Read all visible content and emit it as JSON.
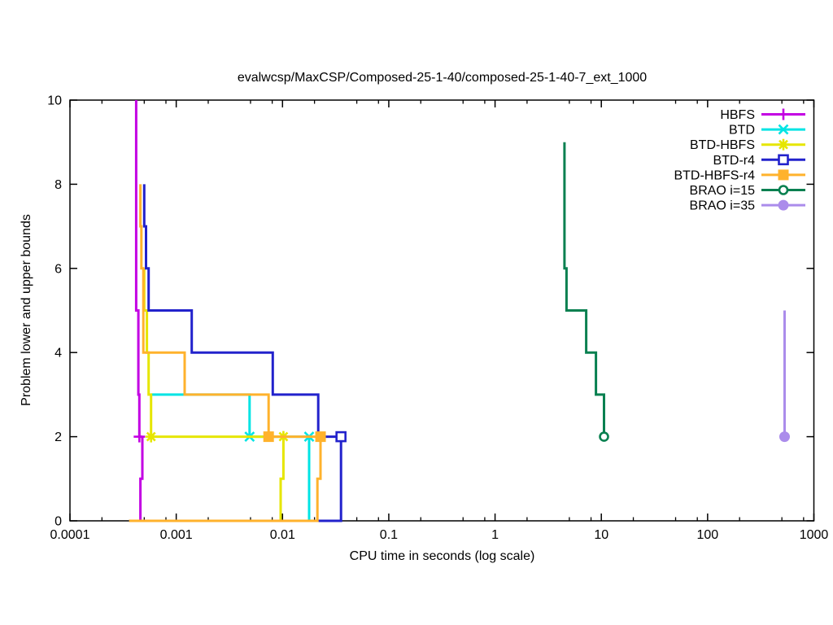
{
  "chart_data": {
    "type": "line",
    "title": "evalwcsp/MaxCSP/Composed-25-1-40/composed-25-1-40-7_ext_1000",
    "xlabel": "CPU time in seconds (log scale)",
    "ylabel": "Problem lower and upper bounds",
    "grid": false,
    "legend_position": "top-right-inside",
    "x_axis": {
      "scale": "log",
      "min": 0.0001,
      "max": 1000,
      "ticks": [
        {
          "v": 0.0001,
          "label": "0.0001"
        },
        {
          "v": 0.001,
          "label": "0.001"
        },
        {
          "v": 0.01,
          "label": "0.01"
        },
        {
          "v": 0.1,
          "label": "0.1"
        },
        {
          "v": 1,
          "label": "1"
        },
        {
          "v": 10,
          "label": "10"
        },
        {
          "v": 100,
          "label": "100"
        },
        {
          "v": 1000,
          "label": "1000"
        }
      ],
      "minor_mantissas": [
        2,
        5,
        8
      ]
    },
    "y_axis": {
      "min": 0,
      "max": 10,
      "ticks": [
        {
          "v": 0,
          "label": "0"
        },
        {
          "v": 2,
          "label": "2"
        },
        {
          "v": 4,
          "label": "4"
        },
        {
          "v": 6,
          "label": "6"
        },
        {
          "v": 8,
          "label": "8"
        },
        {
          "v": 10,
          "label": "10"
        }
      ]
    },
    "series": [
      {
        "name": "HBFS",
        "color": "#c300e3",
        "marker": "plus",
        "lines": [
          [
            [
              0.00042,
              10
            ],
            [
              0.00042,
              5
            ],
            [
              0.00044,
              5
            ],
            [
              0.00044,
              3
            ],
            [
              0.00045,
              3
            ],
            [
              0.00045,
              2
            ],
            [
              0.00048,
              2
            ]
          ],
          [
            [
              0.00036,
              0
            ],
            [
              0.00046,
              0
            ],
            [
              0.00046,
              1
            ],
            [
              0.00048,
              1
            ],
            [
              0.00048,
              2
            ]
          ]
        ],
        "points": [
          [
            0.00045,
            2
          ]
        ]
      },
      {
        "name": "BTD",
        "color": "#00e4e4",
        "marker": "cross",
        "lines": [
          [
            [
              0.00058,
              3
            ],
            [
              0.0049,
              3
            ],
            [
              0.0049,
              2
            ],
            [
              0.0178,
              2
            ]
          ],
          [
            [
              0.00036,
              0
            ],
            [
              0.0178,
              0
            ],
            [
              0.0178,
              2
            ]
          ]
        ],
        "points": [
          [
            0.0049,
            2
          ],
          [
            0.0178,
            2
          ]
        ]
      },
      {
        "name": "BTD-HBFS",
        "color": "#e6e600",
        "marker": "asterisk",
        "lines": [
          [
            [
              0.0005,
              6
            ],
            [
              0.0005,
              5
            ],
            [
              0.00053,
              5
            ],
            [
              0.00053,
              4
            ],
            [
              0.00055,
              4
            ],
            [
              0.00055,
              3
            ],
            [
              0.00058,
              3
            ],
            [
              0.00058,
              2
            ],
            [
              0.0102,
              2
            ]
          ],
          [
            [
              0.00036,
              0
            ],
            [
              0.0096,
              0
            ],
            [
              0.0096,
              1
            ],
            [
              0.0102,
              1
            ],
            [
              0.0102,
              2
            ]
          ]
        ],
        "points": [
          [
            0.00058,
            2
          ],
          [
            0.0102,
            2
          ]
        ]
      },
      {
        "name": "BTD-r4",
        "color": "#2222cc",
        "marker": "square-open",
        "lines": [
          [
            [
              0.0005,
              8
            ],
            [
              0.0005,
              7
            ],
            [
              0.00052,
              7
            ],
            [
              0.00052,
              6
            ],
            [
              0.00055,
              6
            ],
            [
              0.00055,
              5
            ],
            [
              0.0014,
              5
            ],
            [
              0.0014,
              4
            ],
            [
              0.0081,
              4
            ],
            [
              0.0081,
              3
            ],
            [
              0.0217,
              3
            ],
            [
              0.0217,
              2
            ],
            [
              0.0355,
              2
            ]
          ],
          [
            [
              0.00036,
              0
            ],
            [
              0.0355,
              0
            ],
            [
              0.0355,
              2
            ]
          ]
        ],
        "points": [
          [
            0.0355,
            2
          ]
        ]
      },
      {
        "name": "BTD-HBFS-r4",
        "color": "#ffb22c",
        "marker": "square-filled",
        "lines": [
          [
            [
              0.00046,
              8
            ],
            [
              0.00046,
              7
            ],
            [
              0.00047,
              7
            ],
            [
              0.00047,
              6
            ],
            [
              0.00049,
              6
            ],
            [
              0.00049,
              4
            ],
            [
              0.0012,
              4
            ],
            [
              0.0012,
              3
            ],
            [
              0.0074,
              3
            ],
            [
              0.0074,
              2
            ],
            [
              0.0228,
              2
            ]
          ],
          [
            [
              0.00036,
              0
            ],
            [
              0.0213,
              0
            ],
            [
              0.0213,
              1
            ],
            [
              0.0228,
              1
            ],
            [
              0.0228,
              2
            ]
          ]
        ],
        "points": [
          [
            0.0074,
            2
          ],
          [
            0.0228,
            2
          ]
        ]
      },
      {
        "name": "BRAO i=15",
        "color": "#088050",
        "marker": "circle-open",
        "lines": [
          [
            [
              4.5,
              9
            ],
            [
              4.5,
              6
            ],
            [
              4.7,
              6
            ],
            [
              4.7,
              5
            ],
            [
              7.2,
              5
            ],
            [
              7.2,
              4
            ],
            [
              8.9,
              4
            ],
            [
              8.9,
              3
            ],
            [
              10.6,
              3
            ],
            [
              10.6,
              2
            ]
          ]
        ],
        "points": [
          [
            10.6,
            2
          ]
        ]
      },
      {
        "name": "BRAO i=35",
        "color": "#ab8ceb",
        "marker": "circle-filled",
        "lines": [
          [
            [
              530,
              5
            ],
            [
              530,
              2
            ]
          ]
        ],
        "points": [
          [
            530,
            2
          ]
        ]
      }
    ]
  }
}
